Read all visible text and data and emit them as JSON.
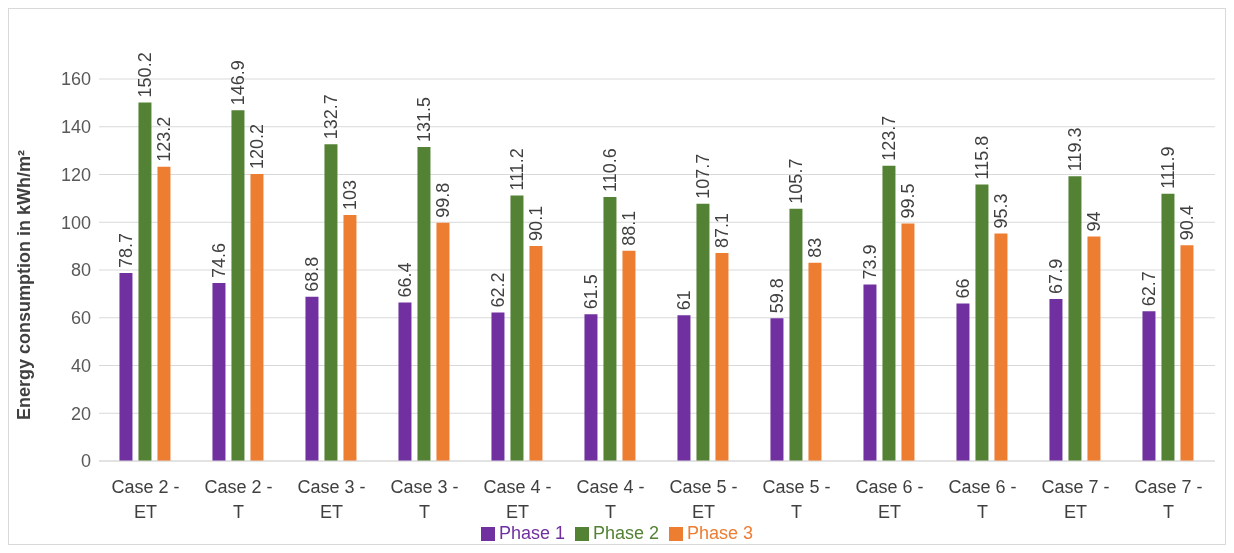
{
  "chart_data": {
    "type": "bar",
    "ylabel": "Energy consumption in kWh/m²",
    "categories": [
      "Case 2 - ET",
      "Case 2 - T",
      "Case 3 - ET",
      "Case 3 - T",
      "Case 4 - ET",
      "Case 4 - T",
      "Case 5 - ET",
      "Case 5 - T",
      "Case 6 - ET",
      "Case 6 - T",
      "Case 7 - ET",
      "Case 7 - T"
    ],
    "series": [
      {
        "name": "Phase 1",
        "color": "#7030a0",
        "values": [
          78.7,
          74.6,
          68.8,
          66.4,
          62.2,
          61.5,
          61,
          59.8,
          73.9,
          66,
          67.9,
          62.7
        ]
      },
      {
        "name": "Phase 2",
        "color": "#548235",
        "values": [
          150.2,
          146.9,
          132.7,
          131.5,
          111.2,
          110.6,
          107.7,
          105.7,
          123.7,
          115.8,
          119.3,
          111.9
        ]
      },
      {
        "name": "Phase 3",
        "color": "#ed7d31",
        "values": [
          123.2,
          120.2,
          103,
          99.8,
          90.1,
          88.1,
          87.1,
          83,
          99.5,
          95.3,
          94,
          90.4
        ]
      }
    ],
    "ylim": [
      0,
      160
    ],
    "yticks": [
      0,
      20,
      40,
      60,
      80,
      100,
      120,
      140,
      160
    ],
    "grid": "y",
    "legend": "bottom",
    "data_labels": true
  }
}
